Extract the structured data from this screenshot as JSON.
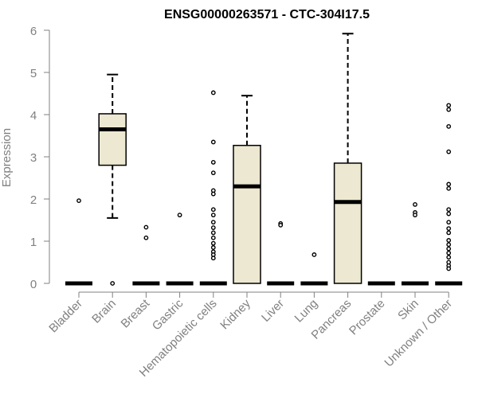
{
  "chart_data": {
    "type": "box",
    "title": "ENSG00000263571 - CTC-304I17.5",
    "xlabel": "",
    "ylabel": "Expression",
    "ylim": [
      0,
      6
    ],
    "yticks": [
      0,
      1,
      2,
      3,
      4,
      5,
      6
    ],
    "grid": false,
    "legend": "none",
    "colors": {
      "box_fill": "#ede8d1",
      "box_stroke": "#000000",
      "axis": "#808080",
      "title": "#000000"
    },
    "categories": [
      "Bladder",
      "Brain",
      "Breast",
      "Gastric",
      "Hematopoietic cells",
      "Kidney",
      "Liver",
      "Lung",
      "Pancreas",
      "Prostate",
      "Skin",
      "Unknown / Other"
    ],
    "boxes": [
      {
        "category": "Bladder",
        "min": 0,
        "q1": 0,
        "median": 0,
        "q3": 0,
        "max": 0,
        "outliers": [
          1.96
        ]
      },
      {
        "category": "Brain",
        "min": 1.55,
        "q1": 2.8,
        "median": 3.65,
        "q3": 4.02,
        "max": 4.95,
        "outliers": [
          0
        ]
      },
      {
        "category": "Breast",
        "min": 0,
        "q1": 0,
        "median": 0,
        "q3": 0,
        "max": 0,
        "outliers": [
          1.33,
          1.08
        ]
      },
      {
        "category": "Gastric",
        "min": 0,
        "q1": 0,
        "median": 0,
        "q3": 0,
        "max": 0,
        "outliers": [
          1.62
        ]
      },
      {
        "category": "Hematopoietic cells",
        "min": 0,
        "q1": 0,
        "median": 0,
        "q3": 0,
        "max": 0,
        "outliers": [
          4.52,
          3.35,
          2.87,
          2.62,
          2.2,
          2.12,
          1.75,
          1.62,
          1.45,
          1.32,
          1.2,
          1.08,
          0.95,
          0.85,
          0.75,
          0.68,
          0.6
        ]
      },
      {
        "category": "Kidney",
        "min": 0,
        "q1": 0,
        "median": 2.3,
        "q3": 3.27,
        "max": 4.45,
        "outliers": []
      },
      {
        "category": "Liver",
        "min": 0,
        "q1": 0,
        "median": 0,
        "q3": 0,
        "max": 0,
        "outliers": [
          1.42,
          1.38
        ]
      },
      {
        "category": "Lung",
        "min": 0,
        "q1": 0,
        "median": 0,
        "q3": 0,
        "max": 0,
        "outliers": [
          0.68
        ]
      },
      {
        "category": "Pancreas",
        "min": 0,
        "q1": 0,
        "median": 1.93,
        "q3": 2.85,
        "max": 5.92,
        "outliers": []
      },
      {
        "category": "Prostate",
        "min": 0,
        "q1": 0,
        "median": 0,
        "q3": 0,
        "max": 0,
        "outliers": []
      },
      {
        "category": "Skin",
        "min": 0,
        "q1": 0,
        "median": 0,
        "q3": 0,
        "max": 0,
        "outliers": [
          1.87,
          1.68,
          1.62
        ]
      },
      {
        "category": "Unknown / Other",
        "min": 0,
        "q1": 0,
        "median": 0,
        "q3": 0,
        "max": 0,
        "outliers": [
          4.22,
          4.12,
          3.72,
          3.12,
          2.35,
          2.25,
          1.75,
          1.65,
          1.45,
          1.3,
          1.2,
          1.02,
          0.92,
          0.82,
          0.72,
          0.62,
          0.5,
          0.42,
          0.35
        ]
      }
    ]
  }
}
